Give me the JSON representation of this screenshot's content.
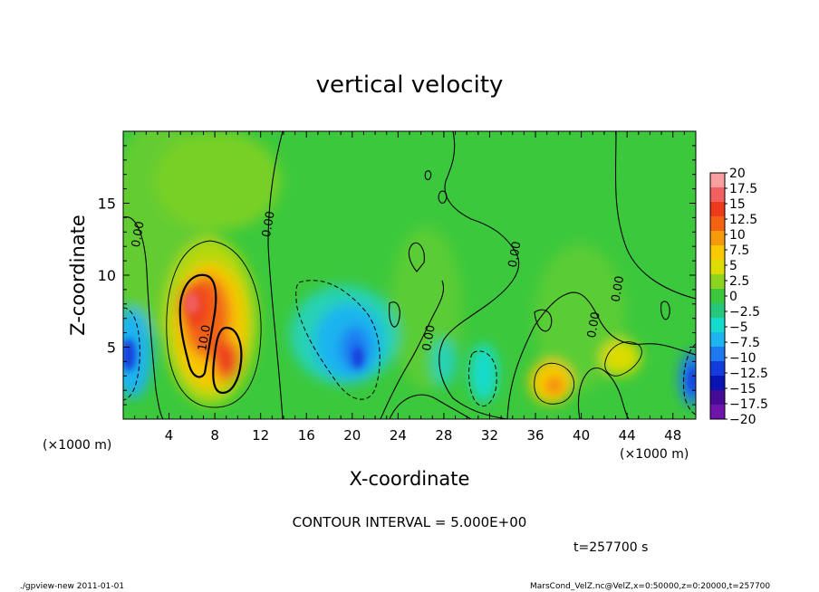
{
  "chart_data": {
    "type": "heatmap",
    "title": "vertical velocity",
    "xlabel": "X-coordinate",
    "ylabel": "Z-coordinate",
    "x_unit_label": "(×1000 m)",
    "z_unit_label": "(×1000 m)",
    "xlim": [
      0,
      50
    ],
    "ylim": [
      0,
      20
    ],
    "x_ticks": [
      "4",
      "8",
      "12",
      "16",
      "20",
      "24",
      "28",
      "32",
      "36",
      "40",
      "44",
      "48"
    ],
    "x_tick_values": [
      4,
      8,
      12,
      16,
      20,
      24,
      28,
      32,
      36,
      40,
      44,
      48
    ],
    "y_ticks": [
      "5",
      "10",
      "15"
    ],
    "y_tick_values": [
      5,
      10,
      15
    ],
    "contour_interval_text": "CONTOUR INTERVAL = 5.000E+00",
    "time_text": "t=257700 s",
    "contour_labels": [
      {
        "text": "0.00",
        "x": 1.6,
        "z": 12.8
      },
      {
        "text": "0.00",
        "x": 13.0,
        "z": 13.5
      },
      {
        "text": "10.0",
        "x": 7.4,
        "z": 5.6
      },
      {
        "text": "0.00",
        "x": 27.0,
        "z": 5.6
      },
      {
        "text": "0.00",
        "x": 34.5,
        "z": 11.4
      },
      {
        "text": "0.00",
        "x": 41.4,
        "z": 6.5
      },
      {
        "text": "0.00",
        "x": 43.5,
        "z": 9.0
      }
    ],
    "features": [
      {
        "kind": "updraft",
        "x": 7.0,
        "z": 7.0,
        "peak": 15
      },
      {
        "kind": "updraft",
        "x": 9.2,
        "z": 4.0,
        "peak": 15
      },
      {
        "kind": "downdraft",
        "x": 0.6,
        "z": 4.5,
        "peak": -12
      },
      {
        "kind": "downdraft",
        "x": 19.5,
        "z": 4.5,
        "peak": -12
      },
      {
        "kind": "downdraft",
        "x": 31.5,
        "z": 3.0,
        "peak": -7
      },
      {
        "kind": "updraft",
        "x": 38.0,
        "z": 2.5,
        "peak": 8
      },
      {
        "kind": "updraft",
        "x": 43.0,
        "z": 4.2,
        "peak": 6
      },
      {
        "kind": "downdraft",
        "x": 49.6,
        "z": 2.8,
        "peak": -11
      }
    ],
    "colorbar": {
      "labels": [
        "20",
        "17.5",
        "15",
        "12.5",
        "10",
        "7.5",
        "5",
        "2.5",
        "0",
        "−2.5",
        "−5",
        "−7.5",
        "−10",
        "−12.5",
        "−15",
        "−17.5",
        "−20"
      ],
      "colors": [
        "#f8a0a0",
        "#f06060",
        "#ee3a1c",
        "#f26414",
        "#f59a0a",
        "#f8c800",
        "#dcdc00",
        "#8cd41e",
        "#3cc83c",
        "#28c87c",
        "#14dccc",
        "#1eb4f0",
        "#1e78f0",
        "#143cdc",
        "#0a14b4",
        "#460a96",
        "#6e14aa"
      ]
    }
  },
  "footer": {
    "left_text": "./gpview-new  2011-01-01",
    "right_text": "MarsCond_VelZ.nc@VelZ,x=0:50000,z=0:20000,t=257700"
  }
}
